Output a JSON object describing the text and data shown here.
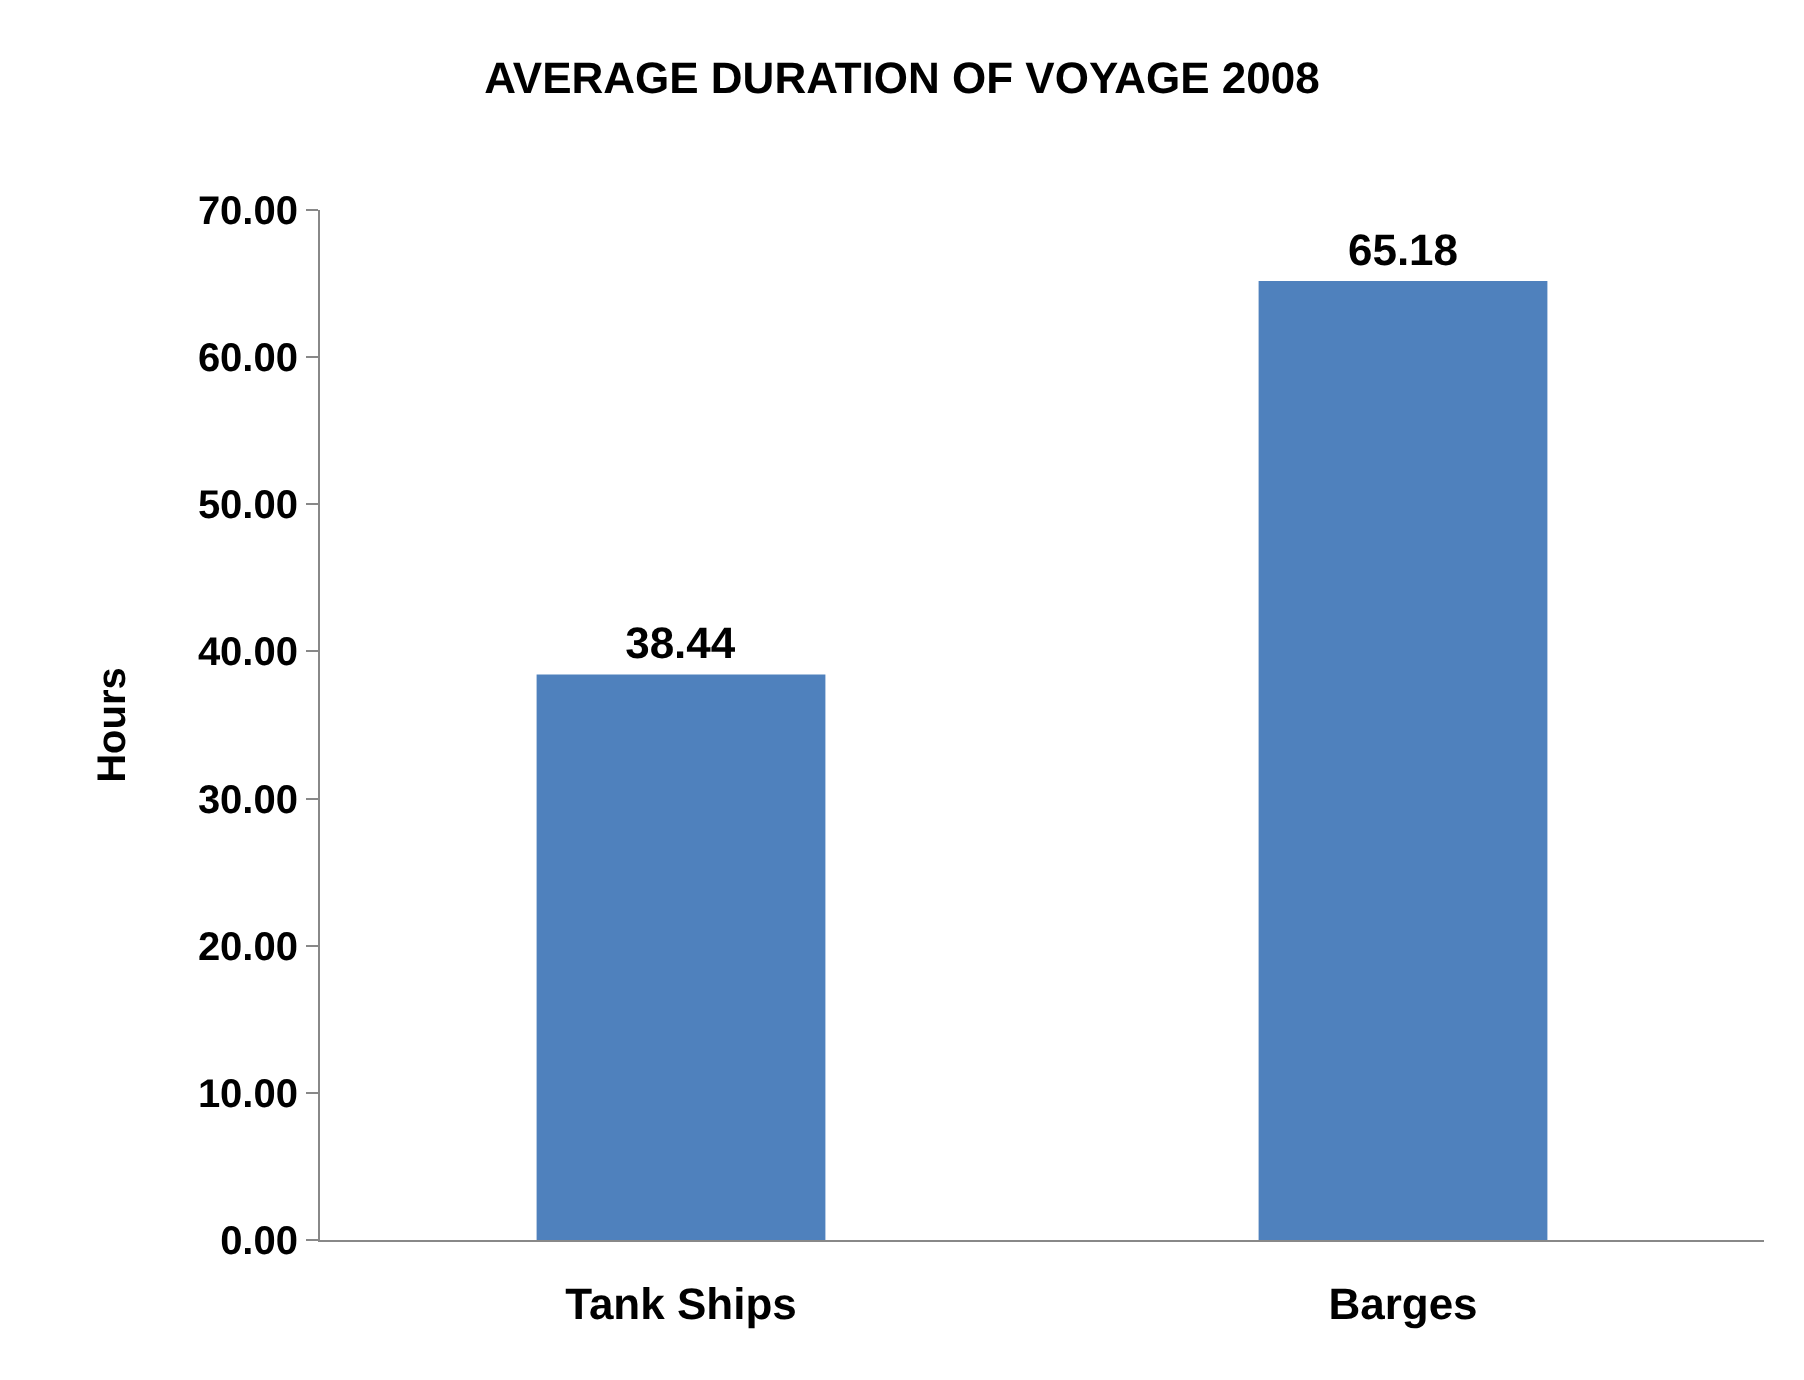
{
  "chart_data": {
    "type": "bar",
    "title": "AVERAGE DURATION OF VOYAGE 2008",
    "ylabel": "Hours",
    "categories": [
      "Tank Ships",
      "Barges"
    ],
    "values": [
      38.44,
      65.18
    ],
    "color": "#4f81bd",
    "ylim": [
      0,
      70
    ],
    "yticks": [
      {
        "value": 0,
        "label": "0.00"
      },
      {
        "value": 10,
        "label": "10.00"
      },
      {
        "value": 20,
        "label": "20.00"
      },
      {
        "value": 30,
        "label": "30.00"
      },
      {
        "value": 40,
        "label": "40.00"
      },
      {
        "value": 50,
        "label": "50.00"
      },
      {
        "value": 60,
        "label": "60.00"
      },
      {
        "value": 70,
        "label": "70.00"
      }
    ],
    "data_labels": true,
    "grid": false
  }
}
